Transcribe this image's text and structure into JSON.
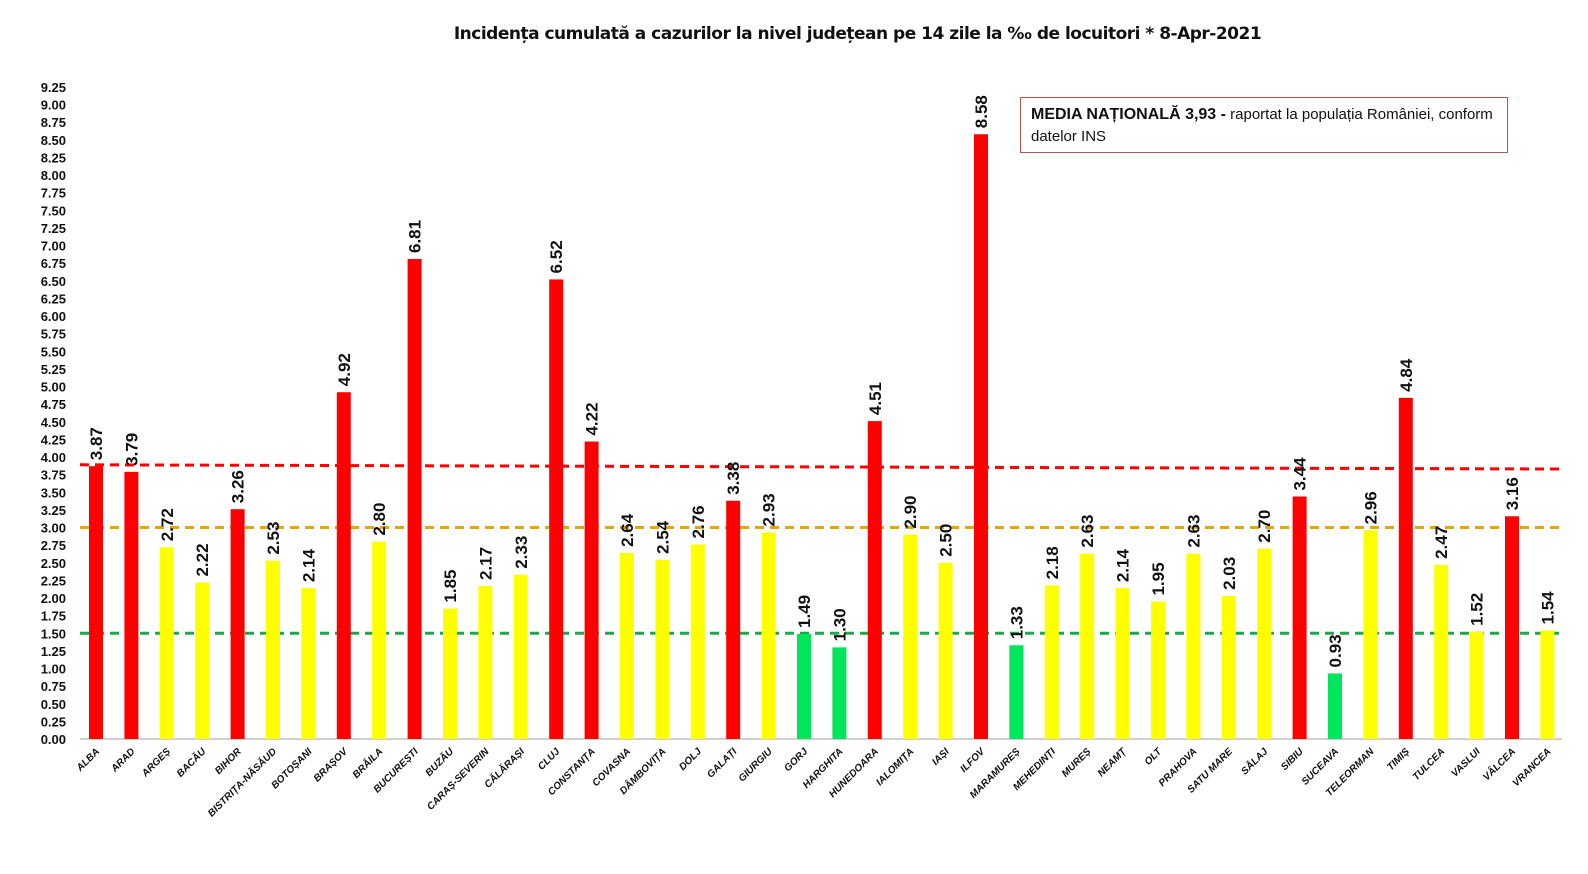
{
  "chart_data": {
    "type": "bar",
    "title": "Incidența cumulată a cazurilor la nivel județean pe 14 zile la ‰ de locuitori *   8-Apr-2021",
    "xlabel": "",
    "ylabel": "",
    "ylim": [
      0,
      9.25
    ],
    "ytick_step": 0.25,
    "grid": false,
    "categories": [
      "ALBA",
      "ARAD",
      "ARGEȘ",
      "BACĂU",
      "BIHOR",
      "BISTRIȚA-NĂSĂUD",
      "BOTOȘANI",
      "BRAȘOV",
      "BRĂILA",
      "BUCUREȘTI",
      "BUZĂU",
      "CARAȘ-SEVERIN",
      "CĂLĂRAȘI",
      "CLUJ",
      "CONSTANȚA",
      "COVASNA",
      "DÂMBOVIȚA",
      "DOLJ",
      "GALAȚI",
      "GIURGIU",
      "GORJ",
      "HARGHITA",
      "HUNEDOARA",
      "IALOMIȚA",
      "IAȘI",
      "ILFOV",
      "MARAMUREȘ",
      "MEHEDINȚI",
      "MUREȘ",
      "NEAMȚ",
      "OLT",
      "PRAHOVA",
      "SATU MARE",
      "SĂLAJ",
      "SIBIU",
      "SUCEAVA",
      "TELEORMAN",
      "TIMIȘ",
      "TULCEA",
      "VASLUI",
      "VÂLCEA",
      "VRANCEA"
    ],
    "values": [
      3.87,
      3.79,
      2.72,
      2.22,
      3.26,
      2.53,
      2.14,
      4.92,
      2.8,
      6.81,
      1.85,
      2.17,
      2.33,
      6.52,
      4.22,
      2.64,
      2.54,
      2.76,
      3.38,
      2.93,
      1.49,
      1.3,
      4.51,
      2.9,
      2.5,
      8.58,
      1.33,
      2.18,
      2.63,
      2.14,
      1.95,
      2.63,
      2.03,
      2.7,
      3.44,
      0.93,
      2.96,
      4.84,
      2.47,
      1.52,
      3.16,
      1.54
    ],
    "bar_colors": {
      "high": "#ff0000",
      "medium": "#ffff00",
      "low": "#00e65c"
    },
    "color_thresholds": [
      1.5,
      3.0
    ],
    "reference_lines": [
      {
        "from": 3.89,
        "to": 3.83,
        "color": "#ff0000",
        "style": "dashed"
      },
      {
        "from": 3.0,
        "to": 3.0,
        "color": "#e6a800",
        "style": "dashed"
      },
      {
        "from": 1.5,
        "to": 1.5,
        "color": "#1fa84a",
        "style": "dashed"
      }
    ],
    "annotation": {
      "bold": "MEDIA NAȚIONALĂ  3,93 -",
      "text": " raportat la populația României, conform datelor INS",
      "border_color": "#c0504d"
    }
  }
}
